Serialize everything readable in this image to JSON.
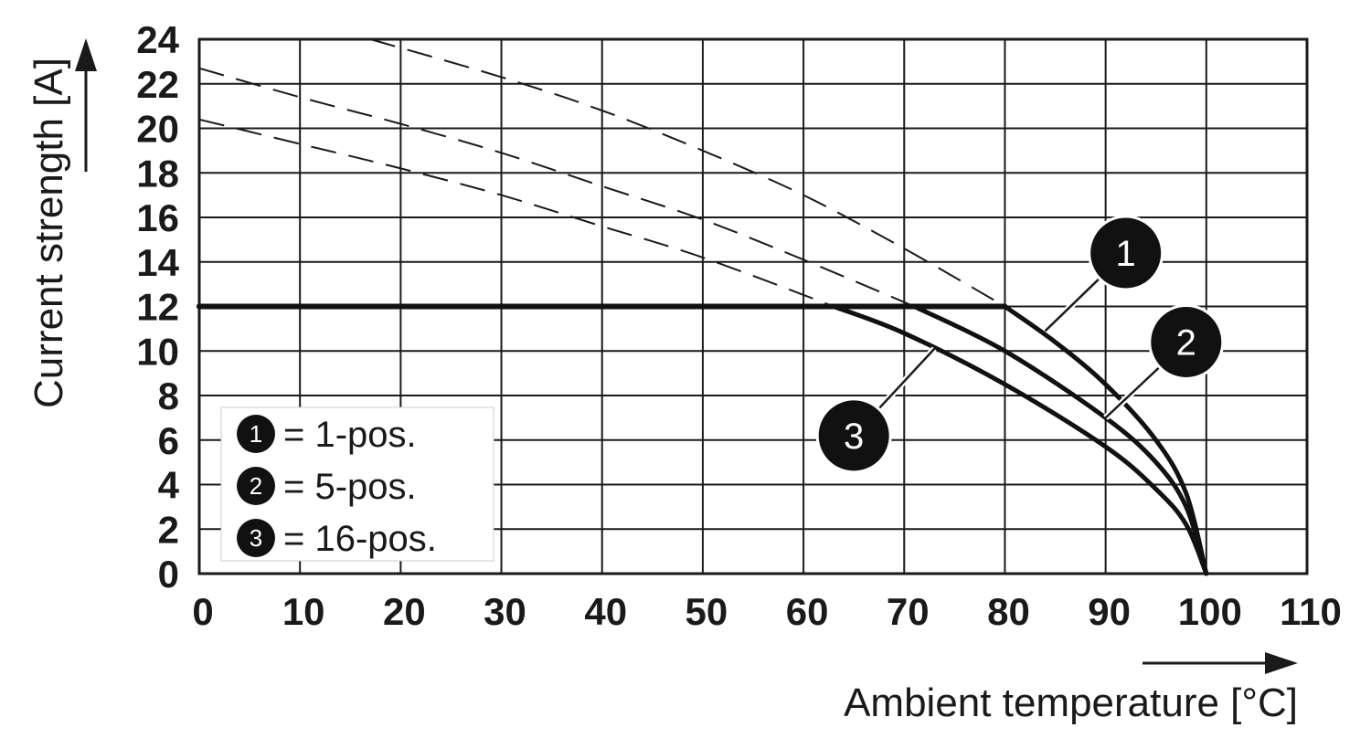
{
  "chart_data": {
    "type": "line",
    "xlabel": "Ambient temperature [°C]",
    "ylabel": "Current strength [A]",
    "xlim": [
      0,
      110
    ],
    "ylim": [
      0,
      24
    ],
    "x_ticks": [
      "0",
      "10",
      "20",
      "30",
      "40",
      "50",
      "60",
      "70",
      "80",
      "90",
      "100",
      "110"
    ],
    "y_ticks": [
      "0",
      "2",
      "4",
      "6",
      "8",
      "10",
      "12",
      "14",
      "16",
      "18",
      "20",
      "22",
      "24"
    ],
    "grid": true,
    "legend_position": "bottom-left",
    "legend": [
      {
        "marker": "1",
        "text": "= 1-pos."
      },
      {
        "marker": "2",
        "text": "= 5-pos."
      },
      {
        "marker": "3",
        "text": "= 16-pos."
      }
    ],
    "series": [
      {
        "marker": "1",
        "points": [
          [
            0,
            12
          ],
          [
            80,
            12
          ],
          [
            85,
            10.4
          ],
          [
            90,
            8.5
          ],
          [
            95,
            6
          ],
          [
            98,
            3.6
          ],
          [
            100,
            0
          ]
        ],
        "dashed": [
          [
            17,
            24
          ],
          [
            30,
            22.3
          ],
          [
            40,
            20.8
          ],
          [
            50,
            19
          ],
          [
            60,
            17
          ],
          [
            70,
            14.6
          ],
          [
            80,
            12
          ]
        ]
      },
      {
        "marker": "2",
        "points": [
          [
            0,
            12
          ],
          [
            71,
            12
          ],
          [
            80,
            10
          ],
          [
            90,
            7
          ],
          [
            95,
            5
          ],
          [
            98,
            3
          ],
          [
            100,
            0
          ]
        ],
        "dashed": [
          [
            0,
            22.7
          ],
          [
            10,
            21.4
          ],
          [
            20,
            20.2
          ],
          [
            30,
            18.9
          ],
          [
            40,
            17.4
          ],
          [
            50,
            15.9
          ],
          [
            60,
            14.1
          ],
          [
            71,
            12
          ]
        ]
      },
      {
        "marker": "3",
        "points": [
          [
            0,
            12
          ],
          [
            63,
            12
          ],
          [
            70,
            10.8
          ],
          [
            80,
            8.5
          ],
          [
            90,
            5.7
          ],
          [
            95,
            3.8
          ],
          [
            98,
            2.2
          ],
          [
            100,
            0
          ]
        ],
        "dashed": [
          [
            0,
            20.4
          ],
          [
            10,
            19.3
          ],
          [
            20,
            18.2
          ],
          [
            30,
            17
          ],
          [
            40,
            15.6
          ],
          [
            50,
            14.2
          ],
          [
            63,
            12
          ]
        ]
      }
    ],
    "annotations": [
      {
        "marker": "1",
        "badge": [
          92,
          14.4
        ],
        "target": [
          84,
          10.9
        ]
      },
      {
        "marker": "2",
        "badge": [
          98,
          10.4
        ],
        "target": [
          90,
          7
        ]
      },
      {
        "marker": "3",
        "badge": [
          65,
          6.2
        ],
        "target": [
          73,
          10.1
        ]
      }
    ]
  }
}
